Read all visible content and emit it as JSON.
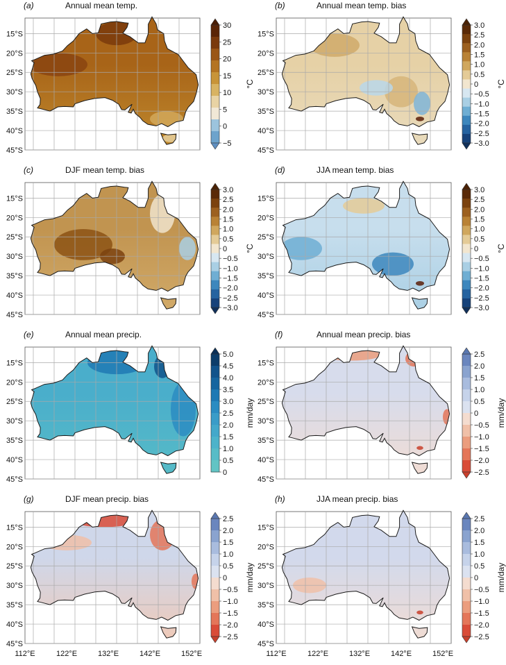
{
  "figure": {
    "background": "#ffffff",
    "grid_color": "#a9a9a9",
    "coast_color": "#1a1a1a"
  },
  "axes": {
    "lat_ticks": [
      "15°S",
      "20°S",
      "25°S",
      "30°S",
      "35°S",
      "40°S",
      "45°S"
    ],
    "lon_ticks": [
      "112°E",
      "122°E",
      "132°E",
      "142°E",
      "152°E"
    ],
    "lon_range": [
      112,
      154
    ],
    "lat_range": [
      -45,
      -11
    ]
  },
  "scales": {
    "temp": {
      "unit": "°C",
      "ticks": [
        "30",
        "25",
        "20",
        "15",
        "10",
        "5",
        "0",
        "−5"
      ],
      "colors": [
        "#5a2506",
        "#7a3a0c",
        "#9a5616",
        "#b47422",
        "#c89438",
        "#d8b362",
        "#e8d3a4",
        "#f1e8d6",
        "#9cc4de",
        "#6da3cc"
      ],
      "top_arrow": "#4a1e05",
      "bottom_arrow": "#5f8fc0"
    },
    "bias_temp": {
      "unit": "°C",
      "ticks": [
        "3.0",
        "2.5",
        "2.0",
        "1.5",
        "1.0",
        "0.5",
        "0",
        "−0.5",
        "−1.0",
        "−1.5",
        "−2.0",
        "−2.5",
        "−3.0"
      ],
      "colors": [
        "#5a2a08",
        "#7b420f",
        "#9c6020",
        "#b98236",
        "#d0a75e",
        "#e4cb97",
        "#f2e6cf",
        "#d7e7f1",
        "#a9cfe4",
        "#6faed3",
        "#3d87bd",
        "#2563a0",
        "#16427a"
      ],
      "top_arrow": "#4a2205",
      "bottom_arrow": "#10305a"
    },
    "precip": {
      "unit": "mm/day",
      "ticks": [
        "5.0",
        "4.5",
        "4.0",
        "3.5",
        "3.0",
        "2.5",
        "2.0",
        "1.5",
        "1.0",
        "0.5",
        "0"
      ],
      "colors": [
        "#0c3d6a",
        "#11538b",
        "#16659f",
        "#1e79b4",
        "#2b8cc2",
        "#3a9cc8",
        "#44a8ca",
        "#4db3ca",
        "#57bcc7",
        "#62c4c4"
      ],
      "top_arrow": "#0a3058"
    },
    "bias_precip": {
      "unit": "mm/day",
      "ticks": [
        "2.5",
        "2.0",
        "1.5",
        "1.0",
        "0.5",
        "0",
        "−0.5",
        "−1.0",
        "−1.5",
        "−2.0",
        "−2.5"
      ],
      "colors": [
        "#6a86be",
        "#8aa3cf",
        "#a9bcde",
        "#c6d3ea",
        "#dbe2f0",
        "#f4dccf",
        "#f0c0a8",
        "#eb9d7e",
        "#e47659",
        "#d94c38"
      ],
      "top_arrow": "#5a77b0",
      "bottom_arrow": "#c8402c"
    }
  },
  "panels": [
    {
      "id": "a",
      "label": "(a)",
      "title": "Annual mean temp.",
      "scale": "temp",
      "base": "#a86418",
      "south": "#c08a2e",
      "blobs": [
        [
          "#8a4410",
          120,
          -23,
          7,
          3
        ],
        [
          "#7a3a0c",
          134,
          -15,
          5,
          3
        ],
        [
          "#d2a85a",
          146,
          -37,
          4,
          2
        ],
        [
          "#e6cf9c",
          147,
          -42,
          2,
          1
        ]
      ]
    },
    {
      "id": "b",
      "label": "(b)",
      "title": "Annual mean temp. bias",
      "scale": "bias_temp",
      "base": "#e6d1a6",
      "south": "#e9dbbd",
      "blobs": [
        [
          "#cfaa6a",
          126,
          -18,
          6,
          3
        ],
        [
          "#d6b57a",
          142,
          -30,
          4,
          4
        ],
        [
          "#7fb5d8",
          147,
          -33,
          2,
          3
        ],
        [
          "#5b1f08",
          146.5,
          -37,
          1,
          0.6
        ],
        [
          "#b9d7ea",
          136,
          -29,
          4,
          2
        ]
      ]
    },
    {
      "id": "c",
      "label": "(c)",
      "title": "DJF mean temp. bias",
      "scale": "bias_temp",
      "base": "#c19450",
      "south": "#d2ab6a",
      "blobs": [
        [
          "#8c5214",
          126,
          -27,
          7,
          4
        ],
        [
          "#7b420f",
          133,
          -30,
          3,
          2
        ],
        [
          "#f0e4cc",
          145,
          -19,
          3,
          5
        ],
        [
          "#a9cfe4",
          151,
          -28,
          2,
          3
        ]
      ]
    },
    {
      "id": "d",
      "label": "(d)",
      "title": "JJA mean temp. bias",
      "scale": "bias_temp",
      "base": "#c7deed",
      "south": "#a9cfe4",
      "blobs": [
        [
          "#6faed3",
          118,
          -28,
          5,
          3
        ],
        [
          "#3d87bd",
          140,
          -32,
          5,
          3
        ],
        [
          "#e4cb97",
          133,
          -17,
          5,
          2
        ],
        [
          "#5b1f08",
          146.5,
          -37,
          1,
          0.6
        ]
      ]
    },
    {
      "id": "e",
      "label": "(e)",
      "title": "Annual mean precip.",
      "scale": "precip",
      "base": "#4aaecb",
      "south": "#57bcc7",
      "blobs": [
        [
          "#1e79b4",
          134,
          -15,
          7,
          3
        ],
        [
          "#2b8cc2",
          150,
          -27,
          3,
          7
        ],
        [
          "#11538b",
          145,
          -16,
          2,
          3
        ]
      ]
    },
    {
      "id": "f",
      "label": "(f)",
      "title": "Annual mean precip. bias",
      "scale": "bias_precip",
      "base": "#d7dcec",
      "south": "#f2dcd2",
      "blobs": [
        [
          "#eb9d7e",
          130,
          -13,
          7,
          1.5
        ],
        [
          "#e47659",
          145,
          -14,
          2,
          2
        ],
        [
          "#e47659",
          153,
          -29,
          1,
          2
        ],
        [
          "#c8402c",
          146.5,
          -37,
          0.8,
          0.5
        ]
      ]
    },
    {
      "id": "g",
      "label": "(g)",
      "title": "DJF mean precip. bias",
      "scale": "bias_precip",
      "base": "#cfd7ea",
      "south": "#f0c9b6",
      "blobs": [
        [
          "#d94c38",
          131,
          -13,
          8,
          2
        ],
        [
          "#e47659",
          145,
          -17,
          3,
          4
        ],
        [
          "#f0c0a8",
          122,
          -19,
          6,
          2
        ],
        [
          "#e47659",
          153,
          -29,
          1,
          2
        ]
      ]
    },
    {
      "id": "h",
      "label": "(h)",
      "title": "JJA mean precip. bias",
      "scale": "bias_precip",
      "base": "#d2d9ec",
      "south": "#f2dcd2",
      "blobs": [
        [
          "#c8402c",
          146.5,
          -37,
          0.8,
          0.5
        ],
        [
          "#f0c0a8",
          120,
          -30,
          4,
          2
        ]
      ]
    }
  ]
}
